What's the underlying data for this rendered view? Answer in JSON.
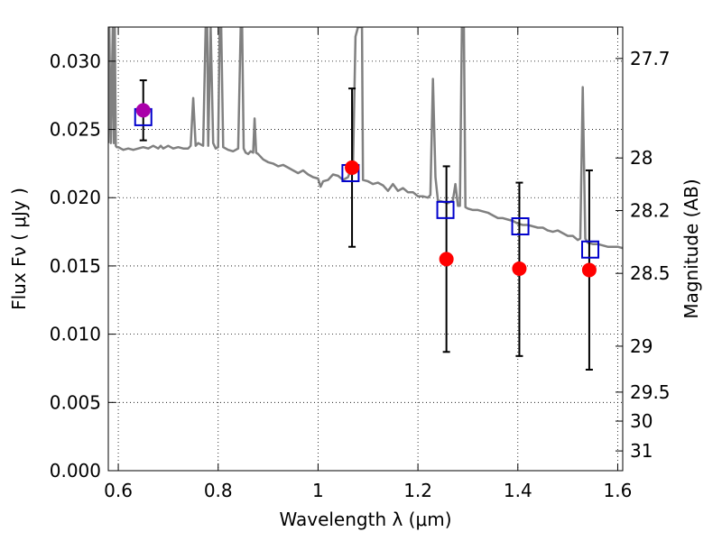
{
  "chart_data": {
    "type": "scatter",
    "xlabel": "Wavelength  λ (μm)",
    "ylabel_left": "Flux  Fν  ( μJy )",
    "ylabel_right": "Magnitude (AB)",
    "xlim": [
      0.58,
      1.61
    ],
    "ylim": [
      0.0,
      0.0325
    ],
    "grid": true,
    "x_ticks": [
      {
        "value": 0.6,
        "label": "0.6"
      },
      {
        "value": 0.8,
        "label": "0.8"
      },
      {
        "value": 1.0,
        "label": "1"
      },
      {
        "value": 1.2,
        "label": "1.2"
      },
      {
        "value": 1.4,
        "label": "1.4"
      },
      {
        "value": 1.6,
        "label": "1.6"
      }
    ],
    "y_ticks": [
      {
        "value": 0.0,
        "label": "0.000"
      },
      {
        "value": 0.005,
        "label": "0.005"
      },
      {
        "value": 0.01,
        "label": "0.010"
      },
      {
        "value": 0.015,
        "label": "0.015"
      },
      {
        "value": 0.02,
        "label": "0.020"
      },
      {
        "value": 0.025,
        "label": "0.025"
      },
      {
        "value": 0.03,
        "label": "0.030"
      }
    ],
    "right_ticks": [
      {
        "value": 27.7,
        "label": "27.7"
      },
      {
        "value": 28.0,
        "label": "28"
      },
      {
        "value": 28.2,
        "label": "28.2"
      },
      {
        "value": 28.5,
        "label": "28.5"
      },
      {
        "value": 29.0,
        "label": "29"
      },
      {
        "value": 29.5,
        "label": "29.5"
      },
      {
        "value": 30.0,
        "label": "30"
      },
      {
        "value": 31.0,
        "label": "31"
      }
    ],
    "model_spectrum": {
      "color": "#808080",
      "x": [
        0.58,
        0.582,
        0.585,
        0.589,
        0.591,
        0.593,
        0.595,
        0.597,
        0.6,
        0.61,
        0.62,
        0.63,
        0.64,
        0.65,
        0.66,
        0.67,
        0.68,
        0.685,
        0.69,
        0.695,
        0.7,
        0.71,
        0.72,
        0.73,
        0.74,
        0.745,
        0.75,
        0.755,
        0.76,
        0.77,
        0.775,
        0.778,
        0.78,
        0.785,
        0.79,
        0.795,
        0.8,
        0.803,
        0.806,
        0.81,
        0.82,
        0.83,
        0.84,
        0.845,
        0.848,
        0.851,
        0.855,
        0.86,
        0.865,
        0.87,
        0.873,
        0.876,
        0.88,
        0.89,
        0.9,
        0.91,
        0.92,
        0.93,
        0.94,
        0.95,
        0.96,
        0.97,
        0.98,
        0.99,
        1.0,
        1.005,
        1.01,
        1.02,
        1.03,
        1.04,
        1.05,
        1.06,
        1.07,
        1.075,
        1.08,
        1.084,
        1.088,
        1.09,
        1.1,
        1.11,
        1.12,
        1.13,
        1.14,
        1.15,
        1.16,
        1.17,
        1.18,
        1.19,
        1.2,
        1.21,
        1.22,
        1.225,
        1.23,
        1.235,
        1.24,
        1.25,
        1.26,
        1.265,
        1.27,
        1.275,
        1.28,
        1.284,
        1.288,
        1.292,
        1.295,
        1.3,
        1.31,
        1.32,
        1.33,
        1.34,
        1.35,
        1.36,
        1.37,
        1.38,
        1.39,
        1.4,
        1.41,
        1.42,
        1.43,
        1.44,
        1.45,
        1.46,
        1.47,
        1.48,
        1.49,
        1.5,
        1.51,
        1.52,
        1.525,
        1.53,
        1.535,
        1.54,
        1.55,
        1.56,
        1.57,
        1.58,
        1.59,
        1.6,
        1.61
      ],
      "y": [
        0.024,
        0.0325,
        0.024,
        0.0325,
        0.024,
        0.0325,
        0.0238,
        0.0237,
        0.0237,
        0.0235,
        0.0236,
        0.0235,
        0.0236,
        0.0237,
        0.0236,
        0.0238,
        0.0236,
        0.0238,
        0.0236,
        0.0237,
        0.0238,
        0.0236,
        0.0237,
        0.0236,
        0.0236,
        0.0238,
        0.0273,
        0.0238,
        0.024,
        0.0238,
        0.0325,
        0.0325,
        0.0238,
        0.0325,
        0.024,
        0.0236,
        0.0237,
        0.0325,
        0.0325,
        0.0237,
        0.0235,
        0.0234,
        0.0236,
        0.0325,
        0.0325,
        0.0236,
        0.0233,
        0.0232,
        0.0234,
        0.0233,
        0.0258,
        0.0233,
        0.0232,
        0.0228,
        0.0226,
        0.0225,
        0.0223,
        0.0224,
        0.0222,
        0.022,
        0.0218,
        0.022,
        0.0217,
        0.0215,
        0.0214,
        0.0208,
        0.0212,
        0.0213,
        0.0217,
        0.0216,
        0.0213,
        0.0215,
        0.0225,
        0.0318,
        0.0325,
        0.0325,
        0.0325,
        0.0213,
        0.0212,
        0.021,
        0.0211,
        0.0209,
        0.0205,
        0.021,
        0.0205,
        0.0207,
        0.0204,
        0.0204,
        0.0201,
        0.0201,
        0.02,
        0.0202,
        0.0287,
        0.0215,
        0.0198,
        0.0197,
        0.0196,
        0.0197,
        0.0198,
        0.021,
        0.0194,
        0.0194,
        0.0325,
        0.0325,
        0.0193,
        0.0192,
        0.0191,
        0.0191,
        0.019,
        0.0189,
        0.0187,
        0.0185,
        0.0185,
        0.0184,
        0.0183,
        0.0181,
        0.018,
        0.018,
        0.0179,
        0.0178,
        0.0178,
        0.0176,
        0.0175,
        0.0176,
        0.0174,
        0.0172,
        0.0172,
        0.0169,
        0.017,
        0.0281,
        0.017,
        0.0167,
        0.0166,
        0.0166,
        0.0165,
        0.0164,
        0.0164,
        0.0164,
        0.0163
      ]
    },
    "model_photometry": {
      "marker": "open-square",
      "color": "#0000cc",
      "x": [
        0.65,
        1.065,
        1.255,
        1.405,
        1.545
      ],
      "y": [
        0.0259,
        0.0218,
        0.0191,
        0.0179,
        0.0162
      ]
    },
    "observed": [
      {
        "x": 0.65,
        "y": 0.0264,
        "err_low": 0.0022,
        "err_high": 0.0022,
        "color": "#aa00aa"
      },
      {
        "x": 1.068,
        "y": 0.0222,
        "err_low": 0.0058,
        "err_high": 0.0058,
        "color": "#ff0000"
      },
      {
        "x": 1.257,
        "y": 0.0155,
        "err_low": 0.0068,
        "err_high": 0.0068,
        "color": "#ff0000"
      },
      {
        "x": 1.403,
        "y": 0.0148,
        "err_low": 0.0064,
        "err_high": 0.0063,
        "color": "#ff0000"
      },
      {
        "x": 1.543,
        "y": 0.0147,
        "err_low": 0.0073,
        "err_high": 0.0073,
        "color": "#ff0000"
      }
    ]
  }
}
